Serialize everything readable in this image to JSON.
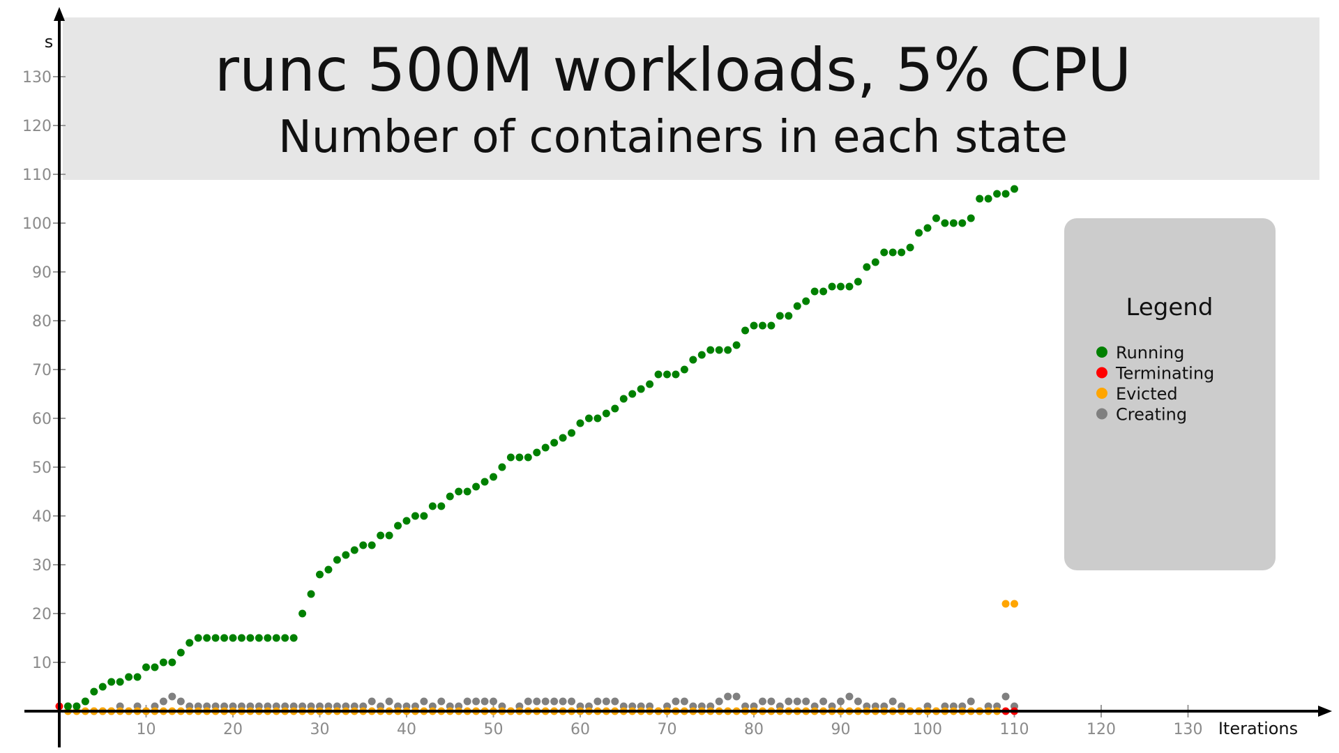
{
  "chart_data": {
    "type": "scatter",
    "title": "runc 500M workloads, 5% CPU",
    "subtitle": "Number of containers in each state",
    "xlabel": "Iterations",
    "ylabel": "s",
    "xlim": [
      0,
      135
    ],
    "ylim": [
      0,
      135
    ],
    "x_ticks": [
      "10",
      "20",
      "30",
      "40",
      "50",
      "60",
      "70",
      "80",
      "90",
      "100",
      "110",
      "120",
      "130"
    ],
    "y_ticks": [
      "10",
      "20",
      "30",
      "40",
      "50",
      "60",
      "70",
      "80",
      "90",
      "100",
      "110",
      "120",
      "130"
    ],
    "grid": false,
    "legend_position": "right",
    "legend_title": "Legend",
    "series": [
      {
        "name": "Running",
        "color": "#008000",
        "x": [
          1,
          2,
          3,
          4,
          5,
          6,
          7,
          8,
          9,
          10,
          11,
          12,
          13,
          14,
          15,
          16,
          17,
          18,
          19,
          20,
          21,
          22,
          23,
          24,
          25,
          26,
          27,
          28,
          29,
          30,
          31,
          32,
          33,
          34,
          35,
          36,
          37,
          38,
          39,
          40,
          41,
          42,
          43,
          44,
          45,
          46,
          47,
          48,
          49,
          50,
          51,
          52,
          53,
          54,
          55,
          56,
          57,
          58,
          59,
          60,
          61,
          62,
          63,
          64,
          65,
          66,
          67,
          68,
          69,
          70,
          71,
          72,
          73,
          74,
          75,
          76,
          77,
          78,
          79,
          80,
          81,
          82,
          83,
          84,
          85,
          86,
          87,
          88,
          89,
          90,
          91,
          92,
          93,
          94,
          95,
          96,
          97,
          98,
          99,
          100,
          101,
          102,
          103,
          104,
          105,
          106,
          107,
          108,
          109,
          110
        ],
        "y": [
          1,
          1,
          2,
          4,
          5,
          6,
          6,
          7,
          7,
          9,
          9,
          10,
          10,
          12,
          14,
          15,
          15,
          15,
          15,
          15,
          15,
          15,
          15,
          15,
          15,
          15,
          15,
          20,
          24,
          28,
          29,
          31,
          32,
          33,
          34,
          34,
          36,
          36,
          38,
          39,
          40,
          40,
          42,
          42,
          44,
          45,
          45,
          46,
          47,
          48,
          50,
          52,
          52,
          52,
          53,
          54,
          55,
          56,
          57,
          59,
          60,
          60,
          61,
          62,
          64,
          65,
          66,
          67,
          69,
          69,
          69,
          70,
          72,
          73,
          74,
          74,
          74,
          75,
          78,
          79,
          79,
          79,
          81,
          81,
          83,
          84,
          86,
          86,
          87,
          87,
          87,
          88,
          91,
          92,
          94,
          94,
          94,
          95,
          98,
          99,
          101,
          100,
          100,
          100,
          101,
          105,
          105,
          106,
          106,
          107
        ]
      },
      {
        "name": "Terminating",
        "color": "#ff0000",
        "x": [
          0,
          109,
          110
        ],
        "y": [
          1,
          0,
          0
        ]
      },
      {
        "name": "Evicted",
        "color": "#ffa500",
        "x": [
          1,
          2,
          3,
          4,
          5,
          6,
          7,
          8,
          9,
          10,
          11,
          12,
          13,
          14,
          15,
          16,
          17,
          18,
          19,
          20,
          21,
          22,
          23,
          24,
          25,
          26,
          27,
          28,
          29,
          30,
          31,
          32,
          33,
          34,
          35,
          36,
          37,
          38,
          39,
          40,
          41,
          42,
          43,
          44,
          45,
          46,
          47,
          48,
          49,
          50,
          51,
          52,
          53,
          54,
          55,
          56,
          57,
          58,
          59,
          60,
          61,
          62,
          63,
          64,
          65,
          66,
          67,
          68,
          69,
          70,
          71,
          72,
          73,
          74,
          75,
          76,
          77,
          78,
          79,
          80,
          81,
          82,
          83,
          84,
          85,
          86,
          87,
          88,
          89,
          90,
          91,
          92,
          93,
          94,
          95,
          96,
          97,
          98,
          99,
          100,
          101,
          102,
          103,
          104,
          105,
          106,
          107,
          108,
          109,
          110
        ],
        "y": [
          0,
          0,
          0,
          0,
          0,
          0,
          0,
          0,
          0,
          0,
          0,
          0,
          0,
          0,
          0,
          0,
          0,
          0,
          0,
          0,
          0,
          0,
          0,
          0,
          0,
          0,
          0,
          0,
          0,
          0,
          0,
          0,
          0,
          0,
          0,
          0,
          0,
          0,
          0,
          0,
          0,
          0,
          0,
          0,
          0,
          0,
          0,
          0,
          0,
          0,
          0,
          0,
          0,
          0,
          0,
          0,
          0,
          0,
          0,
          0,
          0,
          0,
          0,
          0,
          0,
          0,
          0,
          0,
          0,
          0,
          0,
          0,
          0,
          0,
          0,
          0,
          0,
          0,
          0,
          0,
          0,
          0,
          0,
          0,
          0,
          0,
          0,
          0,
          0,
          0,
          0,
          0,
          0,
          0,
          0,
          0,
          0,
          0,
          0,
          0,
          0,
          0,
          0,
          0,
          0,
          0,
          0,
          0,
          22,
          22
        ]
      },
      {
        "name": "Creating",
        "color": "#808080",
        "x": [
          1,
          2,
          3,
          4,
          5,
          6,
          7,
          8,
          9,
          10,
          11,
          12,
          13,
          14,
          15,
          16,
          17,
          18,
          19,
          20,
          21,
          22,
          23,
          24,
          25,
          26,
          27,
          28,
          29,
          30,
          31,
          32,
          33,
          34,
          35,
          36,
          37,
          38,
          39,
          40,
          41,
          42,
          43,
          44,
          45,
          46,
          47,
          48,
          49,
          50,
          51,
          52,
          53,
          54,
          55,
          56,
          57,
          58,
          59,
          60,
          61,
          62,
          63,
          64,
          65,
          66,
          67,
          68,
          69,
          70,
          71,
          72,
          73,
          74,
          75,
          76,
          77,
          78,
          79,
          80,
          81,
          82,
          83,
          84,
          85,
          86,
          87,
          88,
          89,
          90,
          91,
          92,
          93,
          94,
          95,
          96,
          97,
          98,
          99,
          100,
          101,
          102,
          103,
          104,
          105,
          106,
          107,
          108,
          109,
          110
        ],
        "y": [
          1,
          1,
          2,
          0,
          0,
          0,
          1,
          0,
          1,
          0,
          1,
          2,
          3,
          2,
          1,
          1,
          1,
          1,
          1,
          1,
          1,
          1,
          1,
          1,
          1,
          1,
          1,
          1,
          1,
          1,
          1,
          1,
          1,
          1,
          1,
          2,
          1,
          2,
          1,
          1,
          1,
          2,
          1,
          2,
          1,
          1,
          2,
          2,
          2,
          2,
          1,
          0,
          1,
          2,
          2,
          2,
          2,
          2,
          2,
          1,
          1,
          2,
          2,
          2,
          1,
          1,
          1,
          1,
          0,
          1,
          2,
          2,
          1,
          1,
          1,
          2,
          3,
          3,
          1,
          1,
          2,
          2,
          1,
          2,
          2,
          2,
          1,
          2,
          1,
          2,
          3,
          2,
          1,
          1,
          1,
          2,
          1,
          0,
          0,
          1,
          0,
          1,
          1,
          1,
          2,
          0,
          1,
          1,
          3,
          1
        ]
      }
    ]
  }
}
